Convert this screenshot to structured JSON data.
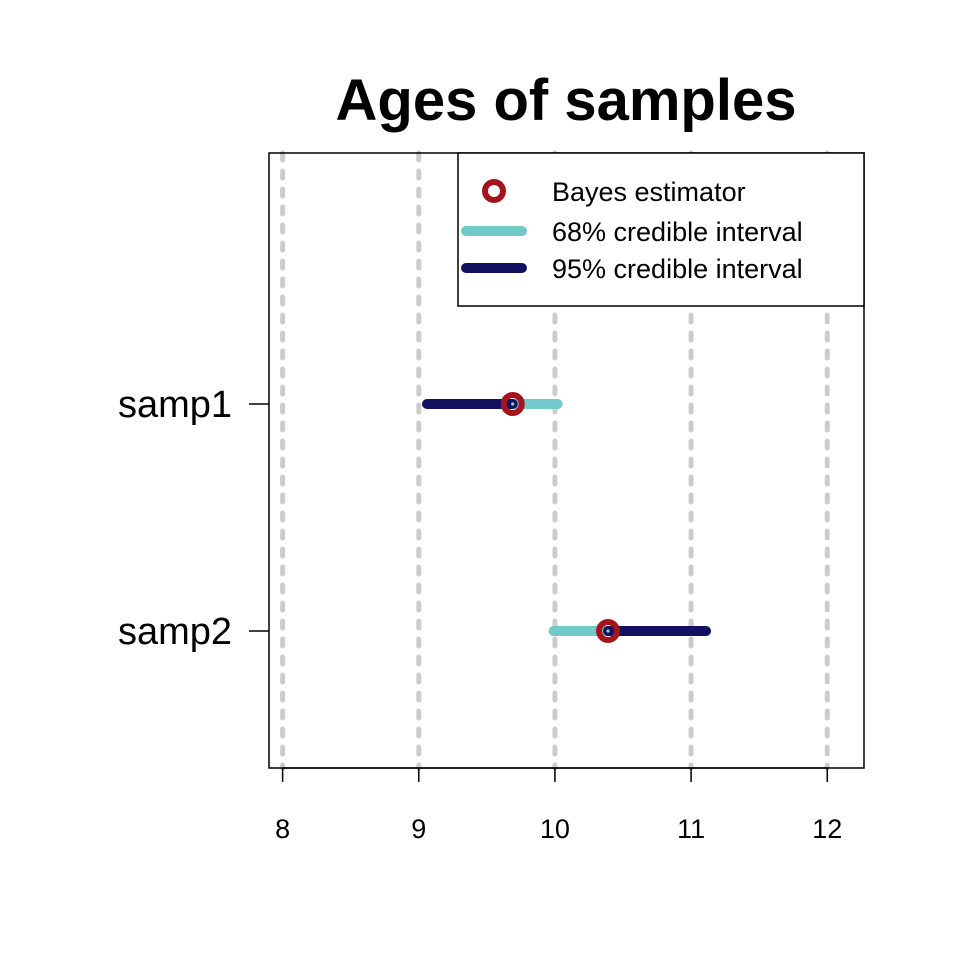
{
  "chart_data": {
    "type": "interval",
    "title": "Ages of samples",
    "xlabel": "",
    "ylabel": "",
    "xlim": [
      7.9,
      12.27
    ],
    "x_ticks": [
      8,
      9,
      10,
      11,
      12
    ],
    "x_tick_labels": [
      "8",
      "9",
      "10",
      "11",
      "12"
    ],
    "grid": "vertical dashed lines at x ticks",
    "legend_position": "top-right",
    "legend": [
      {
        "label": "Bayes estimator",
        "kind": "point",
        "color": "#a3141d"
      },
      {
        "label": "68% credible interval",
        "kind": "line",
        "color": "#72c9c9"
      },
      {
        "label": "95% credible interval",
        "kind": "line",
        "color": "#12115f"
      }
    ],
    "samples": [
      {
        "name": "samp1",
        "estimate": 9.69,
        "ci68": [
          9.69,
          10.02
        ],
        "ci95": [
          9.06,
          9.69
        ]
      },
      {
        "name": "samp2",
        "estimate": 10.39,
        "ci68": [
          9.99,
          10.39
        ],
        "ci95": [
          10.39,
          11.11
        ]
      }
    ],
    "colors": {
      "estimator": "#a3141d",
      "ci68": "#72c9c9",
      "ci95": "#12115f",
      "grid": "#cccccc",
      "axis": "#000000"
    }
  }
}
